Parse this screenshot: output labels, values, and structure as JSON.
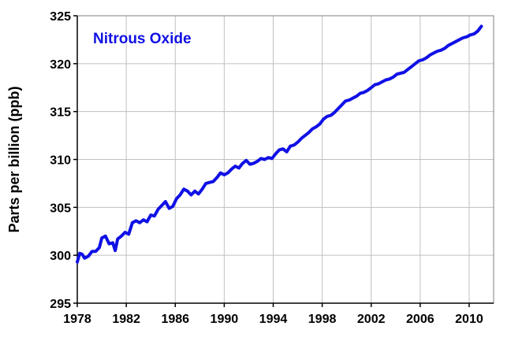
{
  "chart_data": {
    "type": "line",
    "ylabel": "Parts per billion (ppb)",
    "xlabel": "",
    "xlim": [
      1978,
      2012
    ],
    "ylim": [
      295,
      325
    ],
    "x_ticks": [
      1978,
      1982,
      1986,
      1990,
      1994,
      1998,
      2002,
      2006,
      2010
    ],
    "y_ticks": [
      295,
      300,
      305,
      310,
      315,
      320,
      325
    ],
    "x_tick_labels": [
      "1978",
      "1982",
      "1986",
      "1990",
      "1994",
      "1998",
      "2002",
      "2006",
      "2010"
    ],
    "y_tick_labels": [
      "295",
      "300",
      "305",
      "310",
      "315",
      "320",
      "325"
    ],
    "grid": true,
    "line_color": "#1010e6",
    "grid_color": "#c0c0c0",
    "series": [
      {
        "name": "Nitrous Oxide",
        "x": [
          1978.0,
          1978.2,
          1978.4,
          1978.6,
          1978.9,
          1979.2,
          1979.5,
          1979.8,
          1980.0,
          1980.3,
          1980.6,
          1980.9,
          1981.1,
          1981.3,
          1981.6,
          1981.9,
          1982.2,
          1982.5,
          1982.8,
          1983.1,
          1983.4,
          1983.7,
          1984.0,
          1984.3,
          1984.6,
          1984.9,
          1985.2,
          1985.5,
          1985.8,
          1986.1,
          1986.4,
          1986.7,
          1987.0,
          1987.3,
          1987.6,
          1987.9,
          1988.2,
          1988.5,
          1988.8,
          1989.1,
          1989.4,
          1989.7,
          1990.0,
          1990.3,
          1990.6,
          1990.9,
          1991.2,
          1991.5,
          1991.8,
          1992.1,
          1992.4,
          1992.7,
          1993.0,
          1993.3,
          1993.6,
          1993.9,
          1994.2,
          1994.5,
          1994.8,
          1995.1,
          1995.4,
          1995.7,
          1996.0,
          1996.3,
          1996.6,
          1996.9,
          1997.2,
          1997.5,
          1997.8,
          1998.1,
          1998.4,
          1998.7,
          1999.0,
          1999.3,
          1999.6,
          1999.9,
          2000.2,
          2000.5,
          2000.8,
          2001.1,
          2001.4,
          2001.7,
          2002.0,
          2002.3,
          2002.6,
          2002.9,
          2003.2,
          2003.5,
          2003.8,
          2004.1,
          2004.4,
          2004.7,
          2005.0,
          2005.3,
          2005.6,
          2005.9,
          2006.2,
          2006.5,
          2006.8,
          2007.1,
          2007.4,
          2007.7,
          2008.0,
          2008.3,
          2008.6,
          2008.9,
          2009.2,
          2009.5,
          2009.8,
          2010.1,
          2010.4,
          2010.7,
          2011.0
        ],
        "values": [
          299.3,
          300.2,
          300.1,
          299.7,
          299.9,
          300.4,
          300.4,
          300.8,
          301.8,
          302.0,
          301.2,
          301.3,
          300.5,
          301.7,
          302.0,
          302.4,
          302.2,
          303.4,
          303.6,
          303.4,
          303.7,
          303.5,
          304.2,
          304.1,
          304.8,
          305.2,
          305.6,
          304.9,
          305.1,
          305.9,
          306.3,
          306.9,
          306.7,
          306.3,
          306.7,
          306.4,
          306.9,
          307.5,
          307.6,
          307.7,
          308.1,
          308.6,
          308.4,
          308.6,
          309.0,
          309.3,
          309.1,
          309.6,
          309.9,
          309.5,
          309.6,
          309.8,
          310.1,
          310.0,
          310.2,
          310.1,
          310.6,
          311.0,
          311.1,
          310.8,
          311.4,
          311.5,
          311.8,
          312.2,
          312.5,
          312.8,
          313.2,
          313.4,
          313.7,
          314.2,
          314.5,
          314.6,
          314.9,
          315.3,
          315.7,
          316.1,
          316.2,
          316.4,
          316.6,
          316.9,
          317.0,
          317.2,
          317.5,
          317.8,
          317.9,
          318.1,
          318.3,
          318.4,
          318.6,
          318.9,
          319.0,
          319.1,
          319.4,
          319.7,
          320.0,
          320.3,
          320.4,
          320.6,
          320.9,
          321.1,
          321.3,
          321.4,
          321.6,
          321.9,
          322.1,
          322.3,
          322.5,
          322.7,
          322.8,
          323.0,
          323.1,
          323.4,
          323.9
        ]
      }
    ]
  }
}
